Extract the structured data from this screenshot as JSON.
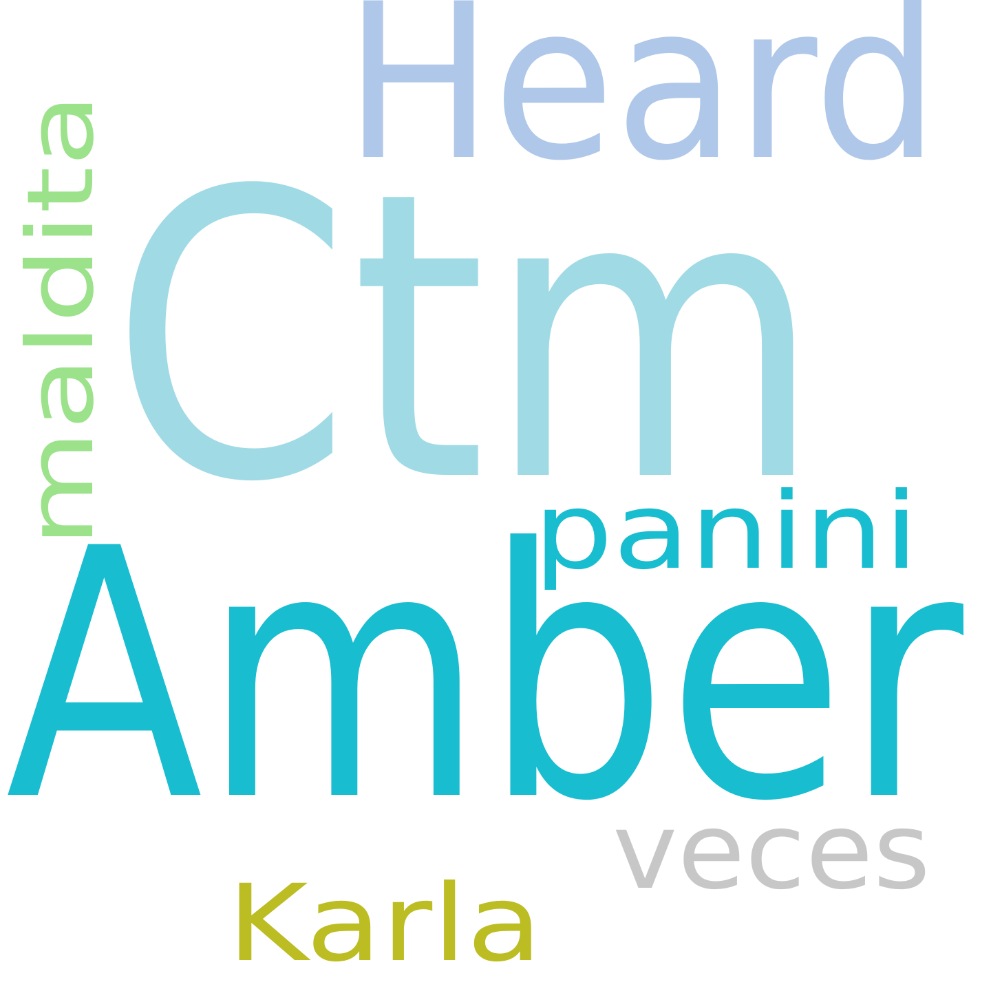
{
  "words": [
    {
      "id": "ctm",
      "text": "Ctm",
      "color": "#a0dae5"
    },
    {
      "id": "amber",
      "text": "Amber",
      "color": "#18bdd0"
    },
    {
      "id": "heard",
      "text": "Heard",
      "color": "#afc7e8"
    },
    {
      "id": "maldita",
      "text": "maldita",
      "color": "#9be28b"
    },
    {
      "id": "panini",
      "text": "panini",
      "color": "#18bdd0"
    },
    {
      "id": "veces",
      "text": "veces",
      "color": "#c7c7c7"
    },
    {
      "id": "karla",
      "text": "Karla",
      "color": "#bcbd22"
    }
  ],
  "background": "#ffffff"
}
